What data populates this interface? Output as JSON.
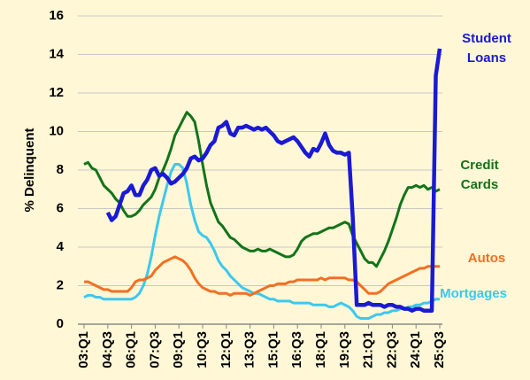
{
  "chart_data": {
    "type": "line",
    "ylabel": "% Delinquent",
    "categories": [
      "03:Q1",
      null,
      null,
      null,
      null,
      null,
      "04:Q3",
      null,
      null,
      null,
      null,
      null,
      "06:Q1",
      null,
      null,
      null,
      null,
      null,
      "07:Q3",
      null,
      null,
      null,
      null,
      null,
      "09:Q1",
      null,
      null,
      null,
      null,
      null,
      "10:Q3",
      null,
      null,
      null,
      null,
      null,
      "12:Q1",
      null,
      null,
      null,
      null,
      null,
      "13:Q3",
      null,
      null,
      null,
      null,
      null,
      "15:Q1",
      null,
      null,
      null,
      null,
      null,
      "16:Q3",
      null,
      null,
      null,
      null,
      null,
      "18:Q1",
      null,
      null,
      null,
      null,
      null,
      "19:Q3",
      null,
      null,
      null,
      null,
      null,
      "21:Q1",
      null,
      null,
      null,
      null,
      null,
      "22:Q3",
      null,
      null,
      null,
      null,
      null,
      "24:Q1",
      null,
      null,
      null,
      null,
      null,
      "25:Q3"
    ],
    "ylim": [
      0,
      16
    ],
    "yticks": [
      0,
      2,
      4,
      6,
      8,
      10,
      12,
      14,
      16
    ],
    "grid": true,
    "series": [
      {
        "name": "Student Loans",
        "color": "#1a1ad4",
        "values": [
          null,
          null,
          null,
          null,
          null,
          null,
          5.8,
          5.4,
          5.6,
          6.2,
          6.8,
          6.9,
          7.2,
          6.7,
          6.7,
          7.2,
          7.5,
          8.0,
          8.1,
          7.7,
          7.8,
          7.6,
          7.3,
          7.4,
          7.6,
          7.8,
          8.1,
          8.6,
          8.7,
          8.5,
          8.6,
          8.9,
          9.3,
          9.5,
          10.2,
          10.3,
          10.5,
          9.9,
          9.8,
          10.2,
          10.2,
          10.3,
          10.2,
          10.1,
          10.2,
          10.1,
          10.2,
          10.0,
          9.8,
          9.5,
          9.4,
          9.5,
          9.6,
          9.7,
          9.5,
          9.2,
          8.9,
          8.7,
          9.1,
          9.0,
          9.4,
          9.9,
          9.3,
          9.0,
          8.9,
          8.9,
          8.8,
          8.9,
          5.5,
          1.0,
          1.0,
          1.0,
          1.1,
          1.0,
          1.0,
          1.0,
          0.9,
          1.0,
          1.0,
          0.9,
          0.9,
          0.8,
          0.8,
          0.7,
          0.8,
          0.8,
          0.7,
          0.7,
          0.7,
          12.9,
          14.3
        ]
      },
      {
        "name": "Credit Cards",
        "color": "#13731a",
        "values": [
          8.3,
          8.4,
          8.1,
          8.0,
          7.6,
          7.2,
          7.0,
          6.8,
          6.5,
          6.3,
          5.9,
          5.6,
          5.6,
          5.7,
          5.9,
          6.2,
          6.4,
          6.6,
          7.0,
          7.6,
          8.0,
          8.5,
          9.1,
          9.8,
          10.2,
          10.6,
          11.0,
          10.8,
          10.5,
          9.5,
          8.3,
          7.2,
          6.3,
          5.8,
          5.3,
          5.1,
          4.8,
          4.5,
          4.4,
          4.2,
          4.0,
          3.9,
          3.8,
          3.8,
          3.9,
          3.8,
          3.8,
          3.9,
          3.8,
          3.7,
          3.6,
          3.5,
          3.5,
          3.6,
          3.9,
          4.3,
          4.5,
          4.6,
          4.7,
          4.7,
          4.8,
          4.9,
          5.0,
          5.0,
          5.1,
          5.2,
          5.3,
          5.2,
          4.6,
          4.2,
          3.8,
          3.4,
          3.2,
          3.2,
          3.0,
          3.4,
          3.8,
          4.3,
          4.9,
          5.5,
          6.2,
          6.7,
          7.1,
          7.1,
          7.2,
          7.1,
          7.2,
          7.0,
          7.1,
          6.9,
          7.0
        ]
      },
      {
        "name": "Autos",
        "color": "#f27022",
        "values": [
          2.2,
          2.2,
          2.1,
          2.0,
          1.9,
          1.8,
          1.8,
          1.7,
          1.7,
          1.7,
          1.7,
          1.7,
          1.9,
          2.2,
          2.3,
          2.3,
          2.4,
          2.5,
          2.8,
          3.0,
          3.2,
          3.3,
          3.4,
          3.5,
          3.4,
          3.3,
          3.1,
          2.8,
          2.4,
          2.1,
          1.9,
          1.8,
          1.7,
          1.7,
          1.6,
          1.6,
          1.6,
          1.5,
          1.6,
          1.6,
          1.6,
          1.6,
          1.5,
          1.6,
          1.7,
          1.8,
          1.9,
          2.0,
          2.0,
          2.1,
          2.1,
          2.1,
          2.2,
          2.2,
          2.3,
          2.3,
          2.3,
          2.3,
          2.3,
          2.3,
          2.4,
          2.3,
          2.4,
          2.4,
          2.4,
          2.4,
          2.4,
          2.3,
          2.3,
          2.2,
          2.0,
          1.8,
          1.6,
          1.6,
          1.6,
          1.7,
          1.9,
          2.1,
          2.2,
          2.3,
          2.4,
          2.5,
          2.6,
          2.7,
          2.8,
          2.9,
          2.9,
          3.0,
          3.0,
          3.0,
          3.0
        ]
      },
      {
        "name": "Mortgages",
        "color": "#3cc8ee",
        "values": [
          1.4,
          1.5,
          1.5,
          1.4,
          1.4,
          1.3,
          1.3,
          1.3,
          1.3,
          1.3,
          1.3,
          1.3,
          1.3,
          1.4,
          1.6,
          2.0,
          2.6,
          3.5,
          4.6,
          5.6,
          6.4,
          7.2,
          7.9,
          8.3,
          8.3,
          8.1,
          7.3,
          6.2,
          5.4,
          4.8,
          4.6,
          4.5,
          4.2,
          3.8,
          3.3,
          3.0,
          2.8,
          2.5,
          2.3,
          2.1,
          1.9,
          1.8,
          1.7,
          1.6,
          1.6,
          1.5,
          1.4,
          1.3,
          1.3,
          1.2,
          1.2,
          1.2,
          1.2,
          1.1,
          1.1,
          1.1,
          1.1,
          1.1,
          1.0,
          1.0,
          1.0,
          1.0,
          0.9,
          0.9,
          1.0,
          1.1,
          1.0,
          0.9,
          0.7,
          0.4,
          0.3,
          0.3,
          0.3,
          0.4,
          0.5,
          0.5,
          0.6,
          0.6,
          0.7,
          0.7,
          0.8,
          0.8,
          0.9,
          0.9,
          1.0,
          1.0,
          1.1,
          1.1,
          1.2,
          1.3,
          1.3
        ]
      }
    ]
  }
}
